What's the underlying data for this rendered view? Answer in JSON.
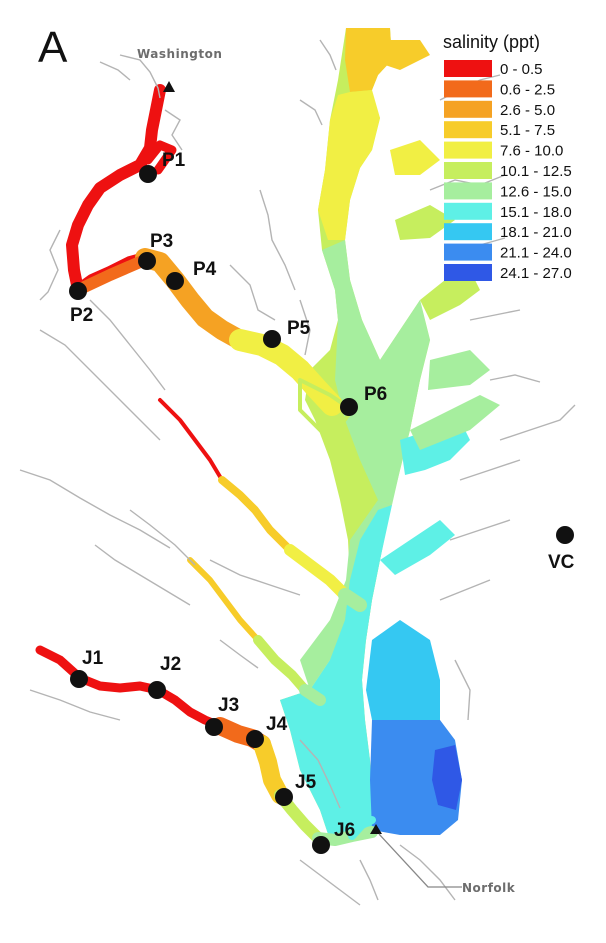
{
  "panel_letter": "A",
  "legend": {
    "title": "salinity (ppt)",
    "classes": [
      {
        "label": "0 - 0.5",
        "color": "#ee1111"
      },
      {
        "label": "0.6 - 2.5",
        "color": "#f26a1b"
      },
      {
        "label": "2.6 - 5.0",
        "color": "#f5a223"
      },
      {
        "label": "5.1 - 7.5",
        "color": "#f7cc2a"
      },
      {
        "label": "7.6 - 10.0",
        "color": "#f1ef44"
      },
      {
        "label": "10.1 - 12.5",
        "color": "#c6ee5e"
      },
      {
        "label": "12.6 - 15.0",
        "color": "#a6ee9e"
      },
      {
        "label": "15.1 - 18.0",
        "color": "#5ef0e6"
      },
      {
        "label": "18.1 - 21.0",
        "color": "#35c8f2"
      },
      {
        "label": "21.1 - 24.0",
        "color": "#3b8cf0"
      },
      {
        "label": "24.1 - 27.0",
        "color": "#2f58e6"
      }
    ]
  },
  "cities": {
    "washington": "Washington",
    "norfolk": "Norfolk"
  },
  "sites": {
    "p1": "P1",
    "p2": "P2",
    "p3": "P3",
    "p4": "P4",
    "p5": "P5",
    "p6": "P6",
    "j1": "J1",
    "j2": "J2",
    "j3": "J3",
    "j4": "J4",
    "j5": "J5",
    "j6": "J6",
    "vc": "VC"
  }
}
